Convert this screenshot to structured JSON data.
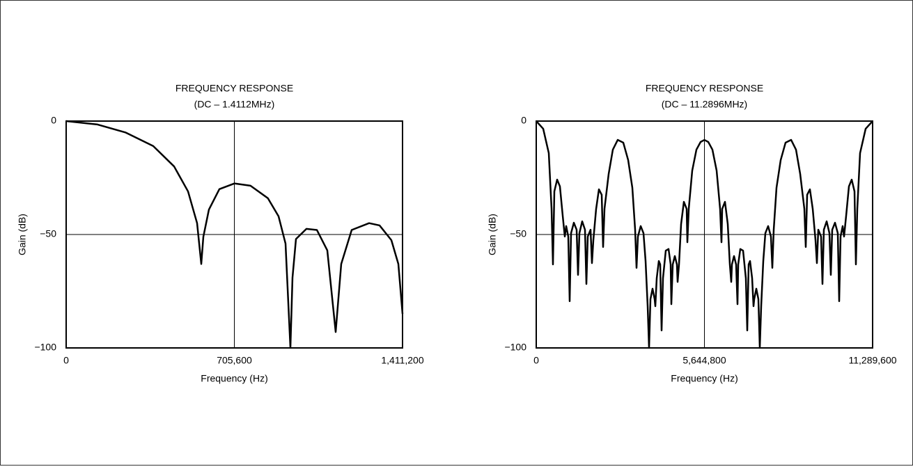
{
  "chart_data": [
    {
      "type": "line",
      "title": "FREQUENCY RESPONSE",
      "subtitle": "(DC – 1.4112MHz)",
      "xlabel": "Frequency (Hz)",
      "ylabel": "Gain (dB)",
      "color": "#000000",
      "grid": true,
      "xlim": [
        0,
        1411200
      ],
      "ylim": [
        -100,
        0
      ],
      "xticks": [
        0,
        {
          "value": 705600,
          "label": "705,600"
        },
        {
          "value": 1411200,
          "label": "1,411,200"
        }
      ],
      "yticks": [
        0,
        {
          "value": -50,
          "label": "−50"
        },
        {
          "value": -100,
          "label": "−100"
        }
      ],
      "x": [
        0,
        131477,
        248340,
        365210,
        452860,
        511300,
        549280,
        566810,
        575580,
        598950,
        642780,
        705600,
        773300,
        846340,
        891150,
        920360,
        940810,
        949570,
        964180,
        1008000,
        1051800,
        1095600,
        1130700,
        1154000,
        1197900,
        1271000,
        1314800,
        1364400,
        1393700,
        1411200
      ],
      "values": [
        0,
        -1.5,
        -5,
        -11,
        -20,
        -31,
        -45,
        -63,
        -51,
        -39,
        -30,
        -27.5,
        -28.5,
        -34,
        -42,
        -54,
        -100,
        -69,
        -52,
        -47.5,
        -48,
        -57,
        -93,
        -63,
        -48,
        -45,
        -46,
        -52.5,
        -63,
        -85
      ]
    },
    {
      "type": "line",
      "title": "FREQUENCY RESPONSE",
      "subtitle": "(DC – 11.2896MHz)",
      "xlabel": "Frequency (Hz)",
      "ylabel": "Gain (dB)",
      "color": "#000000",
      "grid": true,
      "xlim": [
        0,
        11289600
      ],
      "ylim": [
        -100,
        0
      ],
      "xticks": [
        0,
        {
          "value": 5644800,
          "label": "5,644,800"
        },
        {
          "value": 11289600,
          "label": "11,289,600"
        }
      ],
      "yticks": [
        0,
        {
          "value": -50,
          "label": "−50"
        },
        {
          "value": -100,
          "label": "−100"
        }
      ],
      "x": [
        0,
        233740,
        420730,
        514230,
        560980,
        607720,
        701220,
        794720,
        888210,
        958330,
        1005080,
        1075200,
        1121950,
        1168700,
        1262200,
        1355690,
        1402440,
        1449190,
        1542680,
        1636180,
        1682930,
        1729680,
        1823170,
        1869920,
        1916670,
        2010160,
        2103660,
        2197160,
        2243900,
        2290650,
        2430900,
        2571140,
        2734760,
        2921750,
        3085370,
        3225610,
        3319110,
        3365860,
        3412600,
        3506100,
        3599600,
        3669720,
        3739840,
        3786590,
        3833340,
        3903460,
        3973580,
        3996960,
        4043700,
        4113820,
        4160570,
        4207320,
        4254070,
        4347560,
        4441060,
        4511180,
        4534560,
        4581300,
        4651430,
        4721550,
        4744920,
        4791670,
        4861790,
        4955290,
        5048780,
        5072160,
        5118910,
        5235780,
        5376020,
        5516260,
        5644800,
        5773340,
        5913580,
        6053820,
        6170690,
        6217440,
        6240820,
        6334310,
        6427810,
        6497930,
        6544680,
        6568050,
        6638170,
        6708300,
        6755040,
        6778420,
        6848540,
        6942040,
        7035530,
        7082280,
        7129030,
        7175780,
        7245900,
        7292640,
        7316020,
        7386140,
        7456260,
        7503010,
        7549760,
        7619880,
        7690000,
        7783500,
        7877000,
        7923740,
        7970490,
        8063990,
        8204230,
        8367850,
        8554840,
        8718460,
        8858700,
        8998950,
        9045700,
        9092440,
        9185940,
        9279440,
        9372930,
        9419680,
        9466430,
        9559920,
        9606670,
        9653420,
        9746920,
        9840410,
        9887160,
        9933910,
        10027400,
        10120900,
        10167650,
        10214400,
        10284520,
        10331270,
        10401390,
        10494880,
        10588380,
        10681880,
        10728620,
        10775370,
        10868870,
        11055860,
        11289600
      ],
      "values": [
        0,
        -3.4,
        -14.1,
        -38.7,
        -63.2,
        -31,
        -25.8,
        -28.8,
        -41.7,
        -50.9,
        -46.3,
        -50.9,
        -79.4,
        -49.4,
        -44.8,
        -47.9,
        -67.8,
        -49.4,
        -44.2,
        -47.9,
        -71.8,
        -50.9,
        -47.9,
        -62.6,
        -52.5,
        -38.7,
        -30.1,
        -32.5,
        -55.5,
        -38.7,
        -23.3,
        -12.6,
        -8.3,
        -9.5,
        -17.2,
        -29.4,
        -47.9,
        -64.7,
        -50.9,
        -46.3,
        -49.4,
        -61.7,
        -81.6,
        -100,
        -78.5,
        -73.9,
        -78.5,
        -81.6,
        -69.3,
        -61.7,
        -63.2,
        -92.3,
        -69.3,
        -57.1,
        -56.4,
        -63.2,
        -80.7,
        -63.2,
        -59.5,
        -63.2,
        -70.9,
        -63.2,
        -45.4,
        -35.6,
        -38.7,
        -53.4,
        -38.7,
        -21.8,
        -12.6,
        -9.2,
        -8.3,
        -9.2,
        -12.6,
        -21.8,
        -38.7,
        -53.4,
        -38.7,
        -35.6,
        -45.4,
        -63.2,
        -70.9,
        -63.2,
        -59.5,
        -63.2,
        -80.7,
        -63.2,
        -56.4,
        -57.1,
        -69.3,
        -92.3,
        -63.2,
        -61.7,
        -69.3,
        -81.6,
        -78.5,
        -73.9,
        -78.5,
        -100,
        -81.6,
        -61.7,
        -49.4,
        -46.3,
        -50.9,
        -64.7,
        -47.9,
        -29.4,
        -17.2,
        -9.5,
        -8.3,
        -12.6,
        -23.3,
        -38.7,
        -55.5,
        -32.5,
        -30.1,
        -38.7,
        -52.5,
        -62.6,
        -47.9,
        -50.9,
        -71.8,
        -47.9,
        -44.2,
        -49.4,
        -67.8,
        -47.9,
        -44.8,
        -49.4,
        -79.4,
        -50.9,
        -46.3,
        -50.9,
        -41.7,
        -28.8,
        -25.8,
        -31,
        -63.2,
        -38.7,
        -14.1,
        -3.4,
        0
      ]
    }
  ]
}
